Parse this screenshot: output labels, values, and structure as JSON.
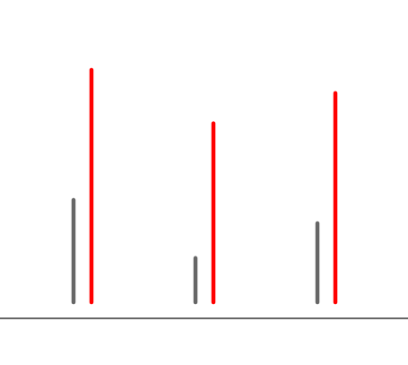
{
  "chart_data": {
    "type": "bar",
    "title": "",
    "xlabel": "",
    "ylabel": "",
    "categories": [
      "",
      "",
      ""
    ],
    "ylim": [
      0,
      100
    ],
    "grid": false,
    "legend": "none",
    "series": [
      {
        "color": "#666666",
        "values": [
          44,
          19,
          34
        ]
      },
      {
        "color": "#ff0000",
        "values": [
          100,
          77,
          90
        ]
      }
    ],
    "axis_color": "#333333"
  }
}
